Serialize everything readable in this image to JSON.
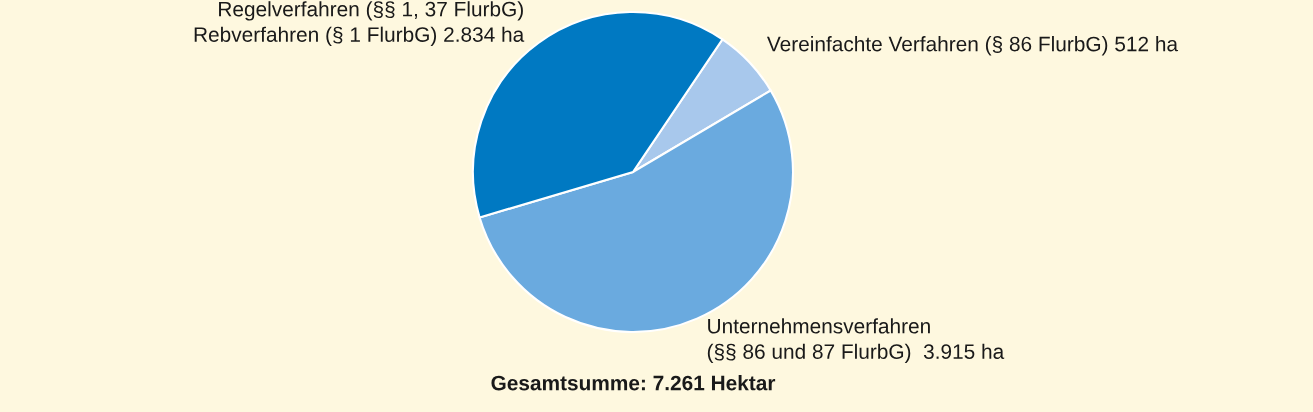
{
  "chart_data": {
    "type": "pie",
    "categories": [
      "Vereinfachte Verfahren (§ 86 FlurbG)",
      "Unternehmensverfahren\n(§§ 86 und 87 FlurbG) ",
      "Regelverfahren (§§ 1, 37 FlurbG)\nRebverfahren (§ 1 FlurbG)"
    ],
    "values": [
      512,
      3915,
      2834
    ],
    "value_labels": [
      "512 ha",
      "3.915 ha",
      "2.834 ha"
    ],
    "colors": [
      "#a8c8ec",
      "#6aaadf",
      "#0079c2"
    ],
    "annotations": [
      "Gesamtsumme: 7.261 Hektar"
    ],
    "legend": false
  }
}
